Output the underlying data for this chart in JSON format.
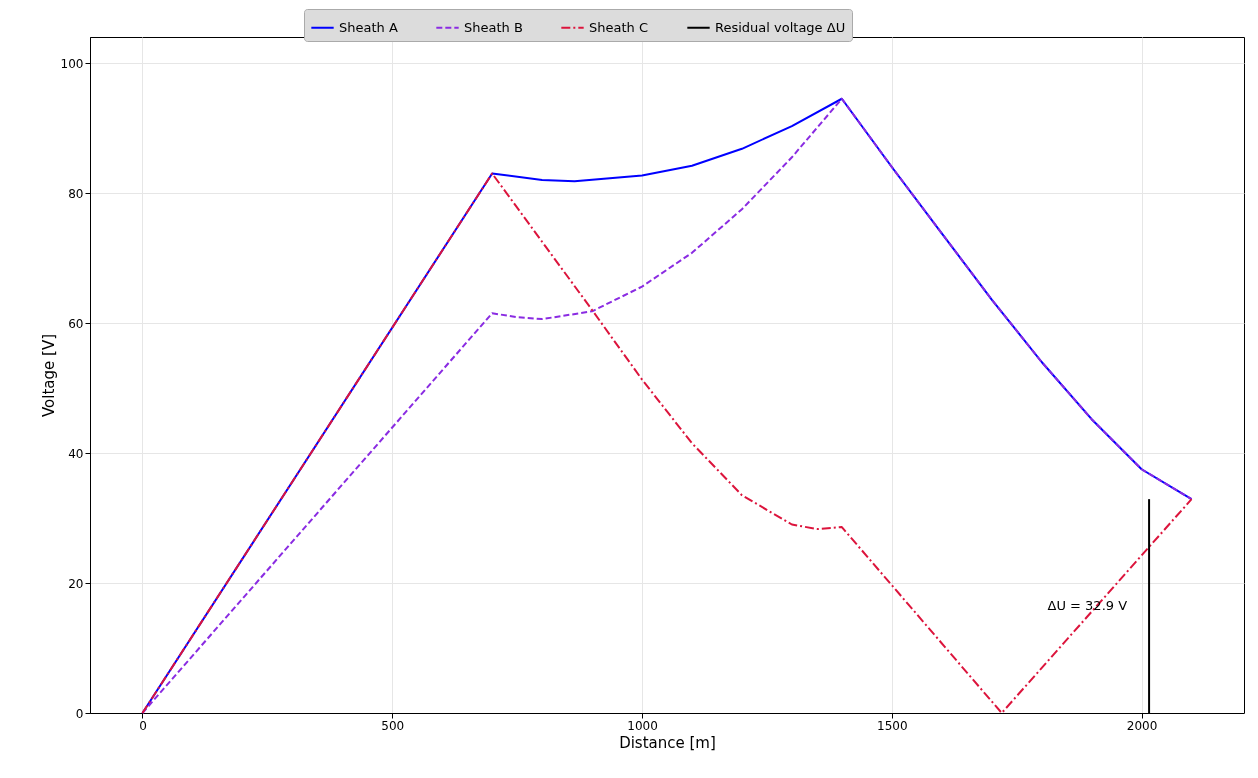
{
  "chart_data": {
    "type": "line",
    "xlabel": "Distance [m]",
    "ylabel": "Voltage [V]",
    "xlim": [
      -105,
      2205
    ],
    "ylim": [
      0,
      104
    ],
    "xticks": [
      0,
      500,
      1000,
      1500,
      2000
    ],
    "yticks": [
      0,
      20,
      40,
      60,
      80,
      100
    ],
    "grid": true,
    "legend": "top",
    "series": [
      {
        "name": "Sheath A",
        "color": "#0000ff",
        "line_style": "solid",
        "x": [
          0,
          700,
          800,
          865,
          1000,
          1100,
          1200,
          1300,
          1400,
          1500,
          1600,
          1700,
          1800,
          1900,
          2000,
          2100
        ],
        "values": [
          0,
          83,
          82.0,
          81.8,
          82.7,
          84.2,
          86.8,
          90.3,
          94.5,
          84.0,
          73.8,
          63.6,
          54.0,
          45.2,
          37.5,
          32.9
        ]
      },
      {
        "name": "Sheath B",
        "color": "#8a2be2",
        "line_style": "dashed",
        "x": [
          0,
          700,
          750,
          800,
          900,
          1000,
          1100,
          1200,
          1300,
          1400,
          1500,
          1600,
          1700,
          1800,
          1900,
          2000,
          2100
        ],
        "values": [
          0,
          61.5,
          60.9,
          60.6,
          61.8,
          65.6,
          70.8,
          77.5,
          85.5,
          94.5,
          84.0,
          73.8,
          63.6,
          54.0,
          45.2,
          37.5,
          32.9
        ]
      },
      {
        "name": "Sheath C",
        "color": "#dc143c",
        "line_style": "dashdot",
        "x": [
          0,
          700,
          800,
          900,
          1000,
          1100,
          1200,
          1300,
          1350,
          1400,
          1720,
          2100
        ],
        "values": [
          0,
          83,
          72.5,
          62.0,
          51.3,
          41.5,
          33.5,
          29.0,
          28.3,
          28.6,
          0,
          32.9
        ]
      },
      {
        "name": "Residual voltage ΔU",
        "color": "#000000",
        "line_style": "solid",
        "x": [
          2015,
          2015
        ],
        "values": [
          0,
          32.9
        ]
      }
    ],
    "annotations": [
      {
        "text": "ΔU = 32.9 V",
        "x": 2015,
        "y": 16.5
      }
    ]
  }
}
